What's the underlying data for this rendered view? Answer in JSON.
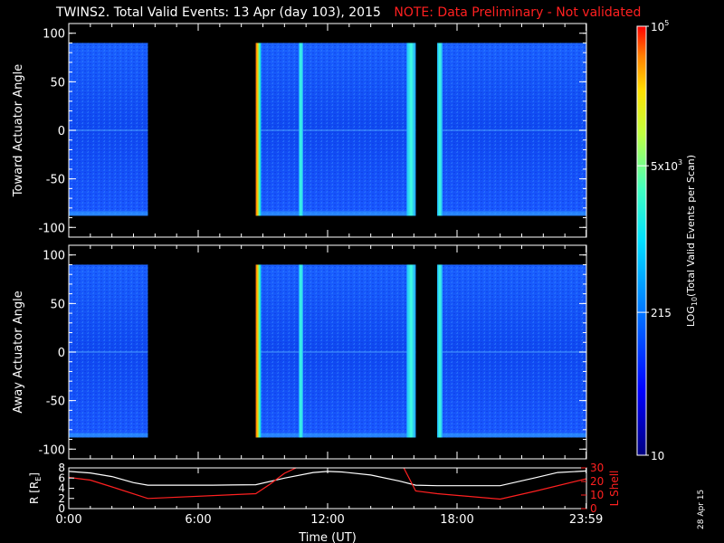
{
  "header": {
    "title": "TWINS2. Total Valid Events: 13 Apr (day 103), 2015",
    "note": "NOTE: Data Preliminary - Not validated"
  },
  "footer": {
    "date_stamp": "28 Apr 15"
  },
  "colors": {
    "note": "#ff2020",
    "r_line": "#ffffff",
    "lshell_line": "#ff2020"
  },
  "chart_data": [
    {
      "type": "heatmap",
      "ylabel": "Toward Actuator Angle",
      "ylim": [
        -110,
        110
      ],
      "yticks": [
        100,
        50,
        0,
        -50,
        -100
      ],
      "data_y_range": [
        -88,
        90
      ],
      "xlim": [
        0,
        1440
      ],
      "data_segments_minutes": [
        [
          0,
          220
        ],
        [
          520,
          965
        ],
        [
          1025,
          1440
        ]
      ],
      "bright_stripes": [
        {
          "start_min": 520,
          "end_min": 535,
          "level": "high"
        },
        {
          "start_min": 640,
          "end_min": 652,
          "level": "mid"
        },
        {
          "start_min": 940,
          "end_min": 965,
          "level": "mid"
        },
        {
          "start_min": 1025,
          "end_min": 1040,
          "level": "mid"
        }
      ]
    },
    {
      "type": "heatmap",
      "ylabel": "Away Actuator Angle",
      "ylim": [
        -110,
        110
      ],
      "yticks": [
        100,
        50,
        0,
        -50,
        -100
      ],
      "data_y_range": [
        -88,
        90
      ],
      "xlim": [
        0,
        1440
      ],
      "data_segments_minutes": [
        [
          0,
          220
        ],
        [
          520,
          965
        ],
        [
          1025,
          1440
        ]
      ],
      "bright_stripes": [
        {
          "start_min": 520,
          "end_min": 535,
          "level": "high"
        },
        {
          "start_min": 640,
          "end_min": 652,
          "level": "mid"
        },
        {
          "start_min": 940,
          "end_min": 965,
          "level": "mid"
        },
        {
          "start_min": 1025,
          "end_min": 1040,
          "level": "mid"
        }
      ]
    },
    {
      "type": "line",
      "ylabel": "R [R",
      "ylabel_sub": "E",
      "ylabel_close": "]",
      "ylim": [
        0,
        8
      ],
      "yticks": [
        0,
        2,
        4,
        6,
        8
      ],
      "y2label": "L Shell",
      "y2lim": [
        0,
        30
      ],
      "y2ticks": [
        0,
        10,
        20,
        30
      ],
      "xlabel": "Time (UT)",
      "xlim": [
        0,
        1440
      ],
      "xticks": [
        0,
        360,
        720,
        1080,
        1439
      ],
      "xticklabels": [
        "0:00",
        "6:00",
        "12:00",
        "18:00",
        "23:59"
      ],
      "series": [
        {
          "axis": "left",
          "color": "#ffffff",
          "x": [
            0,
            60,
            120,
            180,
            220,
            300,
            400,
            520,
            600,
            680,
            720,
            760,
            840,
            920,
            965,
            1025,
            1100,
            1200,
            1300,
            1360,
            1440
          ],
          "y": [
            7.3,
            7.0,
            6.3,
            5.1,
            4.6,
            4.6,
            4.6,
            4.7,
            6.0,
            7.1,
            7.3,
            7.2,
            6.6,
            5.4,
            4.6,
            4.5,
            4.5,
            4.5,
            6.1,
            7.1,
            7.4
          ]
        },
        {
          "axis": "right",
          "color": "#ff2020",
          "x": [
            0,
            60,
            120,
            220,
            520,
            560,
            600,
            640,
            930,
            965,
            1025,
            1200,
            1300,
            1440
          ],
          "y": [
            23,
            21,
            16,
            7.5,
            11,
            18,
            26,
            31,
            31,
            13,
            11,
            7,
            13,
            22
          ]
        }
      ]
    }
  ],
  "colorbar": {
    "label": "LOG",
    "label_sub": "10",
    "label_rest": "(Total Valid Events per Scan)",
    "ticks": [
      {
        "value": 10,
        "text": "10",
        "sup": ""
      },
      {
        "value": 215,
        "text": "215",
        "sup": ""
      },
      {
        "value": 5000,
        "text": "5x10",
        "sup": "3"
      },
      {
        "value": 100000,
        "text": "10",
        "sup": "5"
      }
    ],
    "range": [
      10,
      100000
    ],
    "scale": "log"
  }
}
